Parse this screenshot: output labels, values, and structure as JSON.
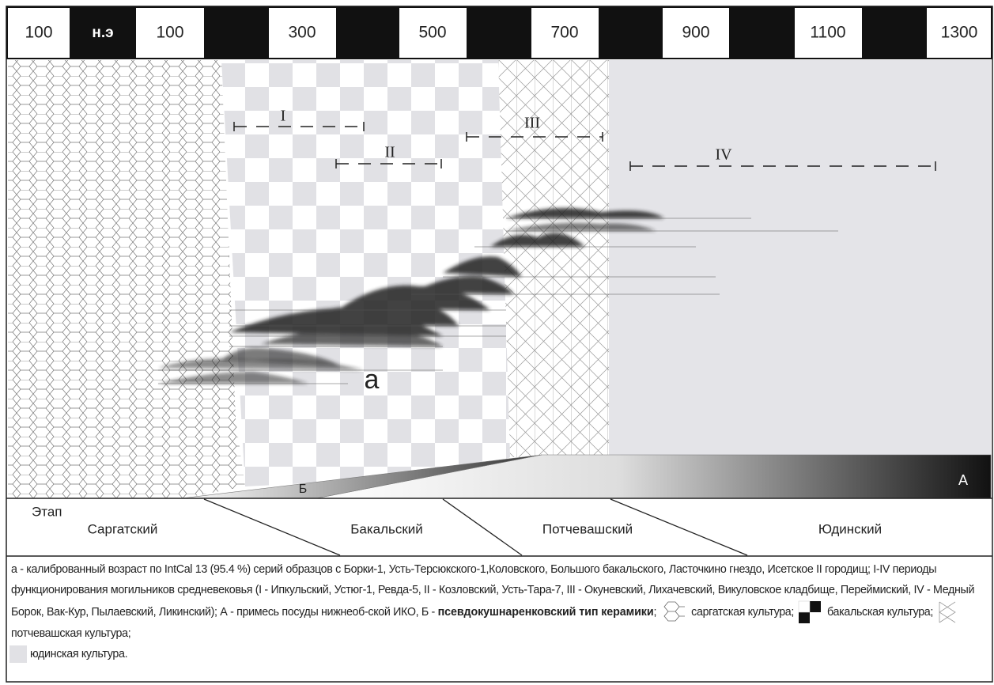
{
  "timeline": [
    "100",
    "н.э",
    "100",
    "300",
    "500",
    "700",
    "900",
    "1100",
    "1300"
  ],
  "periods": [
    "I",
    "II",
    "III",
    "IV"
  ],
  "labels": {
    "a": "а",
    "b": "Б",
    "A": "А"
  },
  "stage": {
    "title": "Этап",
    "names": [
      "Саргатский",
      "Бакальский",
      "Потчевашский",
      "Юдинский"
    ]
  },
  "caption": {
    "text": "а - калиброванный возраст по IntCal 13 (95.4 %) серий образцов с Борки-1, Усть-Терсюкского-1,Коловского, Большого бакальского, Ласточкино гнездо, Исетское II городищ; I-IV периоды функционирования могильников средневековья (I - Ипкульский, Устюг-1, Ревда-5, II - Козловский, Усть-Тара-7, III - Окуневский, Лихачевский, Викуловское кладбище, Переймиский, IV - Медный Борок, Вак-Кур, Пылаевский, Ликинский); А - примесь посуды нижнеоб-ской ИКО, Б - ",
    "bold": "псевдокушнаренковский тип керамики",
    "sep": ";",
    "legend": [
      "саргатская культура;",
      "бакальская культура;",
      "потчевашская культура;",
      "юдинская культура."
    ]
  }
}
